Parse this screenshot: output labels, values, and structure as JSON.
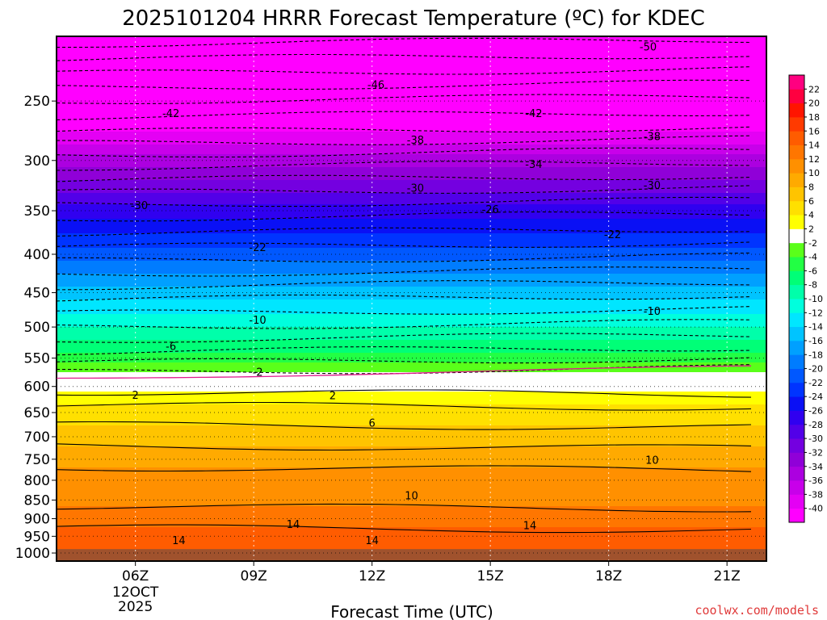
{
  "chart_data": {
    "type": "heatmap",
    "title": "2025101204 HRRR Forecast Temperature (ºC) for KDEC",
    "xlabel": "Forecast Time (UTC)",
    "ylabel": "",
    "credit": "coolwx.com/models",
    "x_ticks": [
      {
        "label": "06Z",
        "hours": 6,
        "sub": [
          "12OCT",
          "2025"
        ]
      },
      {
        "label": "09Z",
        "hours": 9
      },
      {
        "label": "12Z",
        "hours": 12
      },
      {
        "label": "15Z",
        "hours": 15
      },
      {
        "label": "18Z",
        "hours": 18
      },
      {
        "label": "21Z",
        "hours": 21
      }
    ],
    "xlim": [
      4,
      22
    ],
    "y_scale": "log",
    "ylim": [
      1025,
      205
    ],
    "y_ticks": [
      250,
      300,
      350,
      400,
      450,
      500,
      550,
      600,
      650,
      700,
      750,
      800,
      850,
      900,
      950,
      1000
    ],
    "ground_level_hPa": 988,
    "colorbar": {
      "levels": [
        -40,
        -38,
        -36,
        -34,
        -32,
        -30,
        -28,
        -26,
        -24,
        -22,
        -20,
        -18,
        -16,
        -14,
        -12,
        -10,
        -8,
        -6,
        -4,
        -2,
        2,
        4,
        6,
        8,
        10,
        12,
        14,
        16,
        18,
        20,
        22
      ],
      "colors": [
        "#ff00ff",
        "#e400f4",
        "#c800ea",
        "#ac00e0",
        "#9000d8",
        "#7400e0",
        "#5200e8",
        "#3000f0",
        "#0a10f5",
        "#0034ff",
        "#0058ff",
        "#007cff",
        "#00a0ff",
        "#00c4ff",
        "#00e6ff",
        "#00ffdd",
        "#00ffaa",
        "#00ff77",
        "#22ff44",
        "#5aff1a",
        "#ffffff",
        "#ffff00",
        "#ffe000",
        "#ffc400",
        "#ffaa00",
        "#ff9000",
        "#ff7600",
        "#ff5c00",
        "#ff3a00",
        "#ff1400",
        "#ff0040",
        "#ff0080"
      ]
    },
    "temperature_profile": [
      {
        "pressure_hPa": 205,
        "temp_C": -53
      },
      {
        "pressure_hPa": 230,
        "temp_C": -48
      },
      {
        "pressure_hPa": 250,
        "temp_C": -44
      },
      {
        "pressure_hPa": 275,
        "temp_C": -40
      },
      {
        "pressure_hPa": 300,
        "temp_C": -35
      },
      {
        "pressure_hPa": 325,
        "temp_C": -31
      },
      {
        "pressure_hPa": 350,
        "temp_C": -27
      },
      {
        "pressure_hPa": 375,
        "temp_C": -24
      },
      {
        "pressure_hPa": 400,
        "temp_C": -21
      },
      {
        "pressure_hPa": 450,
        "temp_C": -15
      },
      {
        "pressure_hPa": 500,
        "temp_C": -10
      },
      {
        "pressure_hPa": 550,
        "temp_C": -5
      },
      {
        "pressure_hPa": 575,
        "temp_C": -2
      },
      {
        "pressure_hPa": 585,
        "temp_C": 0
      },
      {
        "pressure_hPa": 600,
        "temp_C": 1
      },
      {
        "pressure_hPa": 620,
        "temp_C": 3
      },
      {
        "pressure_hPa": 650,
        "temp_C": 5
      },
      {
        "pressure_hPa": 700,
        "temp_C": 7
      },
      {
        "pressure_hPa": 750,
        "temp_C": 9.5
      },
      {
        "pressure_hPa": 800,
        "temp_C": 10.8
      },
      {
        "pressure_hPa": 850,
        "temp_C": 11.5
      },
      {
        "pressure_hPa": 900,
        "temp_C": 13
      },
      {
        "pressure_hPa": 950,
        "temp_C": 15
      },
      {
        "pressure_hPa": 1000,
        "temp_C": 16
      },
      {
        "pressure_hPa": 1025,
        "temp_C": 16.5
      }
    ],
    "contour_labels": [
      {
        "text": "-50",
        "hours": 19.0,
        "p": 212
      },
      {
        "text": "-46",
        "hours": 12.1,
        "p": 238
      },
      {
        "text": "-42",
        "hours": 6.9,
        "p": 260
      },
      {
        "text": "-42",
        "hours": 16.1,
        "p": 260
      },
      {
        "text": "-38",
        "hours": 13.1,
        "p": 282
      },
      {
        "text": "-38",
        "hours": 19.1,
        "p": 279
      },
      {
        "text": "-34",
        "hours": 16.1,
        "p": 304
      },
      {
        "text": "-30",
        "hours": 13.1,
        "p": 327
      },
      {
        "text": "-30",
        "hours": 19.1,
        "p": 324
      },
      {
        "text": "-30",
        "hours": 6.1,
        "p": 345
      },
      {
        "text": "-26",
        "hours": 15.0,
        "p": 349
      },
      {
        "text": "-22",
        "hours": 9.1,
        "p": 392
      },
      {
        "text": "-22",
        "hours": 18.1,
        "p": 377
      },
      {
        "text": "-10",
        "hours": 9.1,
        "p": 490
      },
      {
        "text": "-10",
        "hours": 19.1,
        "p": 477
      },
      {
        "text": "-6",
        "hours": 6.9,
        "p": 531
      },
      {
        "text": "-2",
        "hours": 9.1,
        "p": 575
      },
      {
        "text": "2",
        "hours": 6.0,
        "p": 617
      },
      {
        "text": "2",
        "hours": 11.0,
        "p": 618
      },
      {
        "text": "6",
        "hours": 12.0,
        "p": 672
      },
      {
        "text": "10",
        "hours": 19.1,
        "p": 753
      },
      {
        "text": "10",
        "hours": 13.0,
        "p": 840
      },
      {
        "text": "14",
        "hours": 10.0,
        "p": 917
      },
      {
        "text": "14",
        "hours": 16.0,
        "p": 920
      },
      {
        "text": "14",
        "hours": 7.1,
        "p": 963
      },
      {
        "text": "14",
        "hours": 12.0,
        "p": 964
      }
    ]
  }
}
